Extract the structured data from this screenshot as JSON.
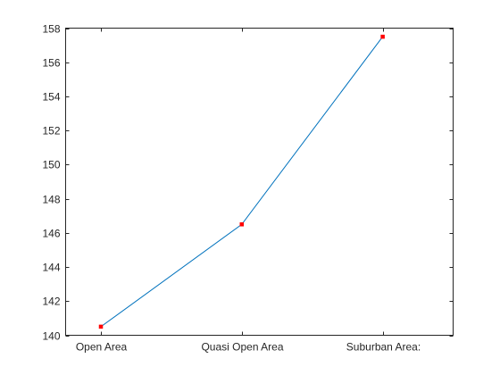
{
  "chart_data": {
    "type": "line",
    "categories": [
      "Open Area",
      "Quasi Open Area",
      "Suburban Area:"
    ],
    "series": [
      {
        "values": [
          140.5,
          146.5,
          157.5
        ],
        "line_color": "#0072BD",
        "marker_color": "#FF0000"
      }
    ],
    "y_ticks": [
      140,
      142,
      144,
      146,
      148,
      150,
      152,
      154,
      156,
      158
    ],
    "ylim": [
      140,
      158
    ],
    "xlim": [
      0.75,
      3.5
    ],
    "grid": false,
    "legend": false
  }
}
